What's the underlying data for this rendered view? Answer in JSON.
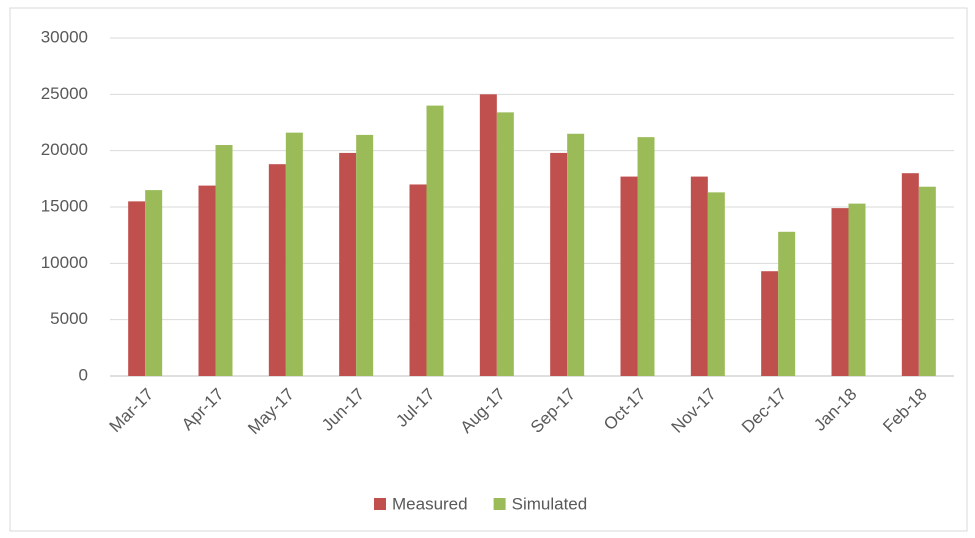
{
  "chart_data": {
    "type": "bar",
    "categories": [
      "Mar-17",
      "Apr-17",
      "May-17",
      "Jun-17",
      "Jul-17",
      "Aug-17",
      "Sep-17",
      "Oct-17",
      "Nov-17",
      "Dec-17",
      "Jan-18",
      "Feb-18"
    ],
    "series": [
      {
        "name": "Measured",
        "color": "#c0504d",
        "values": [
          15500,
          16900,
          18800,
          19800,
          17000,
          25000,
          19800,
          17700,
          17700,
          9300,
          14900,
          18000
        ]
      },
      {
        "name": "Simulated",
        "color": "#9bbb59",
        "values": [
          16500,
          20500,
          21600,
          21400,
          24000,
          23400,
          21500,
          21200,
          16300,
          12800,
          15300,
          16800
        ]
      }
    ],
    "ylim": [
      0,
      30000
    ],
    "yticks": [
      0,
      5000,
      10000,
      15000,
      20000,
      25000,
      30000
    ],
    "grid": true,
    "legend": "bottom"
  }
}
